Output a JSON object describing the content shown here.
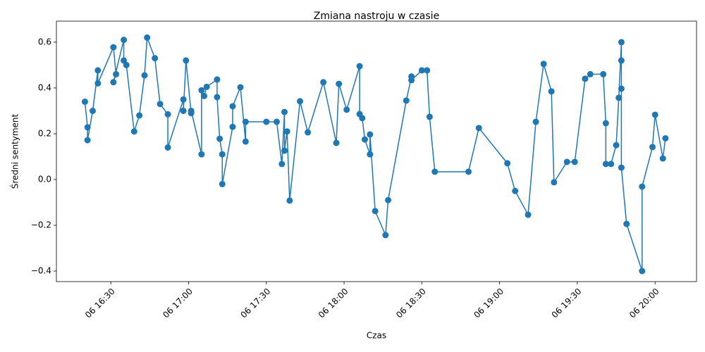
{
  "chart_data": {
    "type": "line",
    "title": "Zmiana nastroju w czasie",
    "x_label": "Czas",
    "y_label": "Średni sentyment",
    "x": [
      "06 16:20",
      "06 16:21",
      "06 16:21",
      "06 16:23",
      "06 16:25",
      "06 16:25",
      "06 16:31",
      "06 16:32",
      "06 16:31",
      "06 16:35",
      "06 16:35",
      "06 16:36",
      "06 16:39",
      "06 16:41",
      "06 16:43",
      "06 16:44",
      "06 16:47",
      "06 16:49",
      "06 16:52",
      "06 16:52",
      "06 16:58",
      "06 16:58",
      "06 16:59",
      "06 17:01",
      "06 17:01",
      "06 17:05",
      "06 17:05",
      "06 17:06",
      "06 17:07",
      "06 17:11",
      "06 17:11",
      "06 17:12",
      "06 17:13",
      "06 17:13",
      "06 17:17",
      "06 17:17",
      "06 17:20",
      "06 17:22",
      "06 17:22",
      "06 17:30",
      "06 17:34",
      "06 17:36",
      "06 17:37",
      "06 17:37",
      "06 17:38",
      "06 17:39",
      "06 17:43",
      "06 17:46",
      "06 17:52",
      "06 17:57",
      "06 17:58",
      "06 18:01",
      "06 18:06",
      "06 18:06",
      "06 18:07",
      "06 18:08",
      "06 18:10",
      "06 18:10",
      "06 18:12",
      "06 18:16",
      "06 18:17",
      "06 18:24",
      "06 18:26",
      "06 18:26",
      "06 18:30",
      "06 18:32",
      "06 18:33",
      "06 18:35",
      "06 18:48",
      "06 18:52",
      "06 19:03",
      "06 19:06",
      "06 19:11",
      "06 19:14",
      "06 19:17",
      "06 19:20",
      "06 19:21",
      "06 19:26",
      "06 19:29",
      "06 19:33",
      "06 19:35",
      "06 19:40",
      "06 19:41",
      "06 19:41",
      "06 19:43",
      "06 19:45",
      "06 19:46",
      "06 19:47",
      "06 19:47",
      "06 19:47",
      "06 19:47",
      "06 19:49",
      "06 19:55",
      "06 19:55",
      "06 19:59",
      "06 20:00",
      "06 20:03",
      "06 20:04"
    ],
    "series": [
      {
        "color": "#1f77b4",
        "values": [
          0.34,
          0.228,
          0.172,
          0.3,
          0.477,
          0.42,
          0.578,
          0.46,
          0.425,
          0.61,
          0.52,
          0.5,
          0.21,
          0.28,
          0.455,
          0.62,
          0.53,
          0.33,
          0.285,
          0.14,
          0.35,
          0.3,
          0.52,
          0.29,
          0.3,
          0.11,
          0.39,
          0.365,
          0.405,
          0.437,
          0.36,
          0.178,
          0.11,
          -0.02,
          0.23,
          0.32,
          0.403,
          0.166,
          0.252,
          0.252,
          0.252,
          0.068,
          0.295,
          0.126,
          0.21,
          -0.092,
          0.342,
          0.206,
          0.425,
          0.16,
          0.418,
          0.305,
          0.495,
          0.286,
          0.268,
          0.175,
          0.11,
          0.197,
          -0.138,
          -0.243,
          -0.09,
          0.345,
          0.45,
          0.434,
          0.477,
          0.477,
          0.274,
          0.034,
          0.034,
          0.225,
          0.071,
          -0.05,
          -0.154,
          0.252,
          0.505,
          0.385,
          -0.012,
          0.077,
          0.077,
          0.44,
          0.46,
          0.46,
          0.246,
          0.068,
          0.068,
          0.15,
          0.357,
          0.6,
          0.52,
          0.397,
          0.052,
          -0.194,
          -0.4,
          -0.031,
          0.142,
          0.283,
          0.092,
          0.18
        ]
      }
    ],
    "xlim": [
      "06 16:09",
      "06 20:16"
    ],
    "xticks": [
      "06 16:30",
      "06 17:00",
      "06 17:30",
      "06 18:00",
      "06 18:30",
      "06 19:00",
      "06 19:30",
      "06 20:00"
    ],
    "ylim": [
      -0.446,
      0.692
    ],
    "yticks": [
      {
        "value": -0.4,
        "label": "−0.4"
      },
      {
        "value": -0.2,
        "label": "−0.2"
      },
      {
        "value": 0,
        "label": "0.0"
      },
      0.2,
      0.4,
      0.6
    ],
    "grid": false,
    "markers": true
  }
}
